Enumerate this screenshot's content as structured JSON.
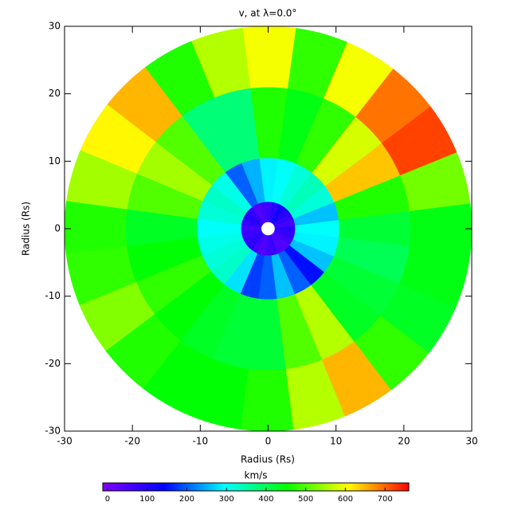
{
  "chart_data": {
    "type": "polar_heatmap",
    "title": "v, at λ=0.0°",
    "xlabel": "Radius (Rs)",
    "ylabel": "Radius (Rs)",
    "xlim": [
      -30,
      30
    ],
    "ylim": [
      -30,
      30
    ],
    "xticks": [
      -30,
      -20,
      -10,
      0,
      10,
      20,
      30
    ],
    "yticks": [
      -30,
      -20,
      -10,
      0,
      10,
      20,
      30
    ],
    "angles": [
      0,
      15,
      30,
      45,
      60,
      75,
      90,
      105,
      120,
      135,
      150,
      165,
      180,
      195,
      210,
      225,
      240,
      255,
      270,
      285,
      300,
      315,
      330,
      345
    ],
    "radii": [
      2,
      6,
      15,
      27
    ],
    "values": [
      [
        90,
        300,
        420,
        440
      ],
      [
        60,
        260,
        470,
        520
      ],
      [
        80,
        320,
        640,
        720
      ],
      [
        100,
        340,
        580,
        690
      ],
      [
        120,
        320,
        480,
        600
      ],
      [
        90,
        300,
        440,
        480
      ],
      [
        70,
        290,
        470,
        600
      ],
      [
        60,
        250,
        380,
        560
      ],
      [
        40,
        200,
        380,
        470
      ],
      [
        80,
        310,
        500,
        650
      ],
      [
        100,
        330,
        550,
        610
      ],
      [
        80,
        320,
        500,
        550
      ],
      [
        60,
        300,
        430,
        470
      ],
      [
        70,
        310,
        450,
        480
      ],
      [
        80,
        320,
        480,
        530
      ],
      [
        90,
        330,
        450,
        470
      ],
      [
        60,
        280,
        430,
        450
      ],
      [
        40,
        180,
        420,
        450
      ],
      [
        60,
        200,
        420,
        470
      ],
      [
        80,
        260,
        500,
        560
      ],
      [
        50,
        200,
        560,
        650
      ],
      [
        40,
        150,
        430,
        480
      ],
      [
        60,
        260,
        420,
        430
      ],
      [
        80,
        290,
        400,
        440
      ]
    ],
    "colorbar_title": "km/s",
    "clim": [
      -12,
      760
    ],
    "colorbar_ticks": [
      0,
      100,
      200,
      300,
      400,
      500,
      600,
      700
    ],
    "colormap": [
      "#8000ff",
      "#0000ff",
      "#00ffff",
      "#00ff00",
      "#ffff00",
      "#ff0000"
    ]
  }
}
